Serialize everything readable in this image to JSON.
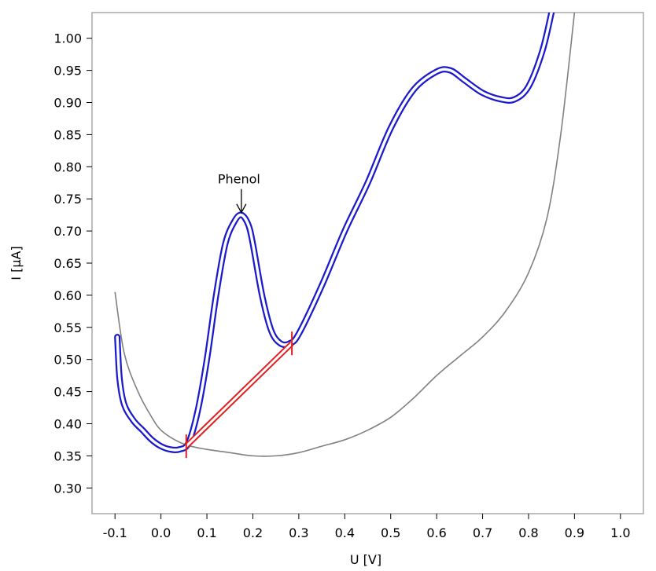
{
  "chart_data": {
    "type": "line",
    "title": "",
    "xlabel": "U [V]",
    "ylabel": "I [µA]",
    "xlim": [
      -0.15,
      1.05
    ],
    "ylim": [
      0.26,
      1.04
    ],
    "x_ticks": [
      "-0.1",
      "0.0",
      "0.1",
      "0.2",
      "0.3",
      "0.4",
      "0.5",
      "0.6",
      "0.7",
      "0.8",
      "0.9",
      "1.0"
    ],
    "y_ticks": [
      "1.00",
      "0.95",
      "0.90",
      "0.85",
      "0.80",
      "0.75",
      "0.70",
      "0.65",
      "0.60",
      "0.55",
      "0.50",
      "0.45",
      "0.40",
      "0.35",
      "0.30"
    ],
    "grid": false,
    "series": [
      {
        "color": "#808080",
        "style": "single",
        "x": [
          -0.1,
          -0.08,
          -0.05,
          -0.02,
          0.0,
          0.03,
          0.06,
          0.1,
          0.15,
          0.2,
          0.25,
          0.3,
          0.35,
          0.4,
          0.45,
          0.5,
          0.55,
          0.6,
          0.65,
          0.7,
          0.75,
          0.8,
          0.84,
          0.87,
          0.9
        ],
        "y": [
          0.605,
          0.51,
          0.45,
          0.41,
          0.39,
          0.375,
          0.366,
          0.36,
          0.355,
          0.35,
          0.35,
          0.355,
          0.365,
          0.375,
          0.39,
          0.41,
          0.44,
          0.475,
          0.505,
          0.535,
          0.575,
          0.635,
          0.72,
          0.85,
          1.04
        ]
      },
      {
        "color": "#1a1acc",
        "style": "double",
        "x": [
          -0.095,
          -0.09,
          -0.08,
          -0.06,
          -0.04,
          -0.02,
          0.0,
          0.02,
          0.04,
          0.06,
          0.08,
          0.1,
          0.12,
          0.14,
          0.16,
          0.175,
          0.19,
          0.2,
          0.22,
          0.24,
          0.26,
          0.28,
          0.3,
          0.35,
          0.4,
          0.45,
          0.5,
          0.55,
          0.6,
          0.63,
          0.66,
          0.7,
          0.74,
          0.77,
          0.8,
          0.83,
          0.85
        ],
        "y": [
          0.535,
          0.47,
          0.43,
          0.405,
          0.39,
          0.375,
          0.365,
          0.36,
          0.36,
          0.37,
          0.42,
          0.5,
          0.6,
          0.68,
          0.715,
          0.725,
          0.71,
          0.68,
          0.6,
          0.545,
          0.525,
          0.525,
          0.54,
          0.615,
          0.7,
          0.775,
          0.86,
          0.92,
          0.948,
          0.95,
          0.935,
          0.915,
          0.905,
          0.905,
          0.925,
          0.98,
          1.04
        ]
      }
    ],
    "baseline_segment": {
      "color": "#e02020",
      "x": [
        0.055,
        0.285
      ],
      "y": [
        0.365,
        0.525
      ]
    },
    "annotation": {
      "text": "Phenol",
      "x": 0.175,
      "y": 0.725
    }
  }
}
